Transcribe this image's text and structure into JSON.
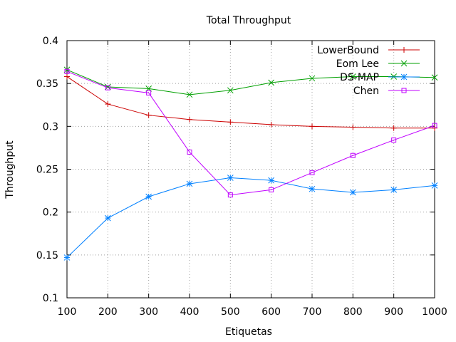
{
  "chart_data": {
    "type": "line",
    "title": "Total Throughput",
    "xlabel": "Etiquetas",
    "ylabel": "Throughput",
    "x": [
      100,
      200,
      300,
      400,
      500,
      600,
      700,
      800,
      900,
      1000
    ],
    "xlim": [
      100,
      1000
    ],
    "ylim": [
      0.1,
      0.4
    ],
    "xticks": [
      100,
      200,
      300,
      400,
      500,
      600,
      700,
      800,
      900,
      1000
    ],
    "yticks": [
      0.1,
      0.15,
      0.2,
      0.25,
      0.3,
      0.35,
      0.4
    ],
    "xtick_labels": [
      "100",
      "200",
      "300",
      "400",
      "500",
      "600",
      "700",
      "800",
      "900",
      "1000"
    ],
    "ytick_labels": [
      "0.1",
      "0.15",
      "0.2",
      "0.25",
      "0.3",
      "0.35",
      "0.4"
    ],
    "grid": true,
    "grid_style": "dotted",
    "legend_position": "top-right",
    "series": [
      {
        "name": "LowerBound",
        "color": "#cc0000",
        "marker": "plus",
        "values": [
          0.358,
          0.326,
          0.313,
          0.308,
          0.305,
          0.302,
          0.3,
          0.299,
          0.298,
          0.298
        ]
      },
      {
        "name": "Eom Lee",
        "color": "#00a000",
        "marker": "cross",
        "values": [
          0.366,
          0.346,
          0.344,
          0.337,
          0.342,
          0.351,
          0.356,
          0.358,
          0.358,
          0.357
        ]
      },
      {
        "name": "DS-MAP",
        "color": "#0080ff",
        "marker": "star",
        "values": [
          0.147,
          0.193,
          0.218,
          0.233,
          0.24,
          0.237,
          0.227,
          0.223,
          0.226,
          0.231
        ]
      },
      {
        "name": "Chen",
        "color": "#c000ff",
        "marker": "square",
        "values": [
          0.364,
          0.345,
          0.339,
          0.27,
          0.22,
          0.226,
          0.246,
          0.266,
          0.284,
          0.301
        ]
      }
    ]
  }
}
